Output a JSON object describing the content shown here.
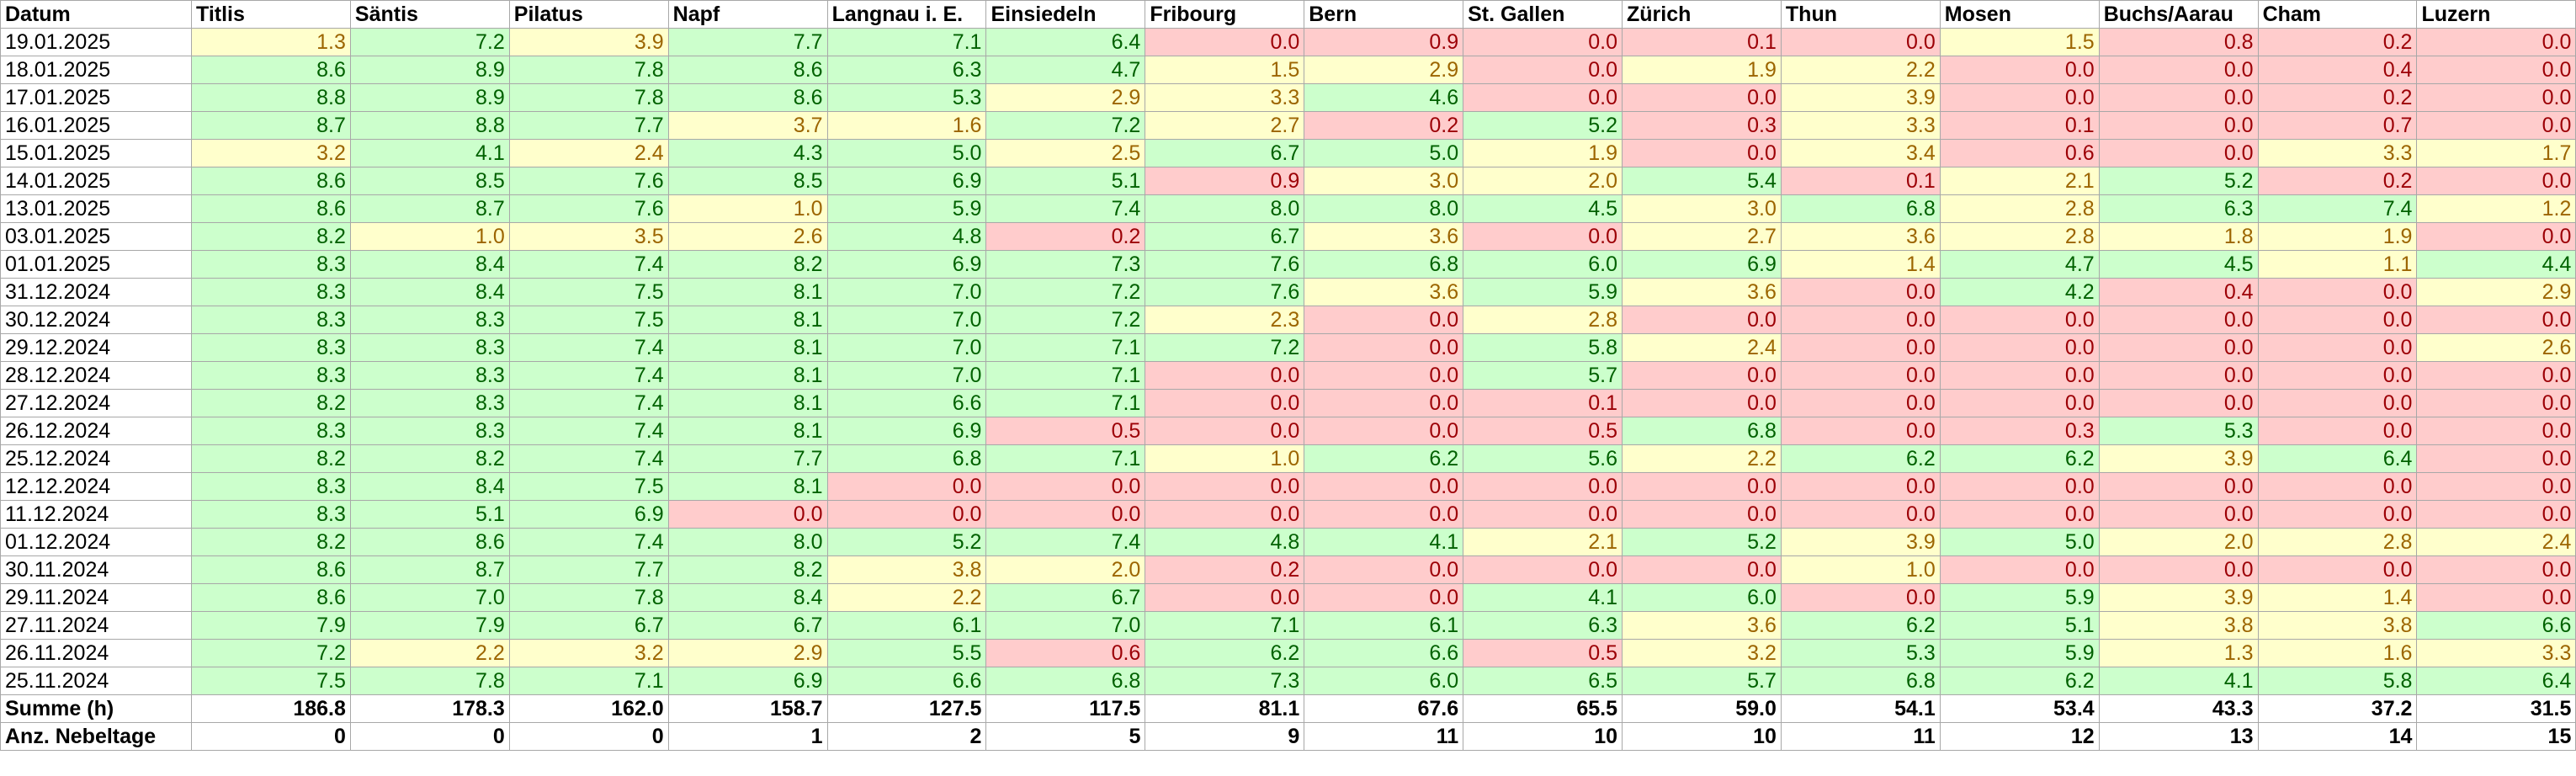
{
  "header": {
    "date_label": "Datum",
    "locations": [
      "Titlis",
      "Säntis",
      "Pilatus",
      "Napf",
      "Langnau i. E.",
      "Einsiedeln",
      "Fribourg",
      "Bern",
      "St. Gallen",
      "Zürich",
      "Thun",
      "Mosen",
      "Buchs/Aarau",
      "Cham",
      "Luzern"
    ]
  },
  "rows": [
    {
      "date": "19.01.2025",
      "values": [
        "1.3",
        "7.2",
        "3.9",
        "7.7",
        "7.1",
        "6.4",
        "0.0",
        "0.9",
        "0.0",
        "0.1",
        "0.0",
        "1.5",
        "0.8",
        "0.2",
        "0.0"
      ],
      "status": [
        "y",
        "g",
        "y",
        "g",
        "g",
        "g",
        "r",
        "r",
        "r",
        "r",
        "r",
        "y",
        "r",
        "r",
        "r"
      ]
    },
    {
      "date": "18.01.2025",
      "values": [
        "8.6",
        "8.9",
        "7.8",
        "8.6",
        "6.3",
        "4.7",
        "1.5",
        "2.9",
        "0.0",
        "1.9",
        "2.2",
        "0.0",
        "0.0",
        "0.4",
        "0.0"
      ],
      "status": [
        "g",
        "g",
        "g",
        "g",
        "g",
        "g",
        "y",
        "y",
        "r",
        "y",
        "y",
        "r",
        "r",
        "r",
        "r"
      ]
    },
    {
      "date": "17.01.2025",
      "values": [
        "8.8",
        "8.9",
        "7.8",
        "8.6",
        "5.3",
        "2.9",
        "3.3",
        "4.6",
        "0.0",
        "0.0",
        "3.9",
        "0.0",
        "0.0",
        "0.2",
        "0.0"
      ],
      "status": [
        "g",
        "g",
        "g",
        "g",
        "g",
        "y",
        "y",
        "g",
        "r",
        "r",
        "y",
        "r",
        "r",
        "r",
        "r"
      ]
    },
    {
      "date": "16.01.2025",
      "values": [
        "8.7",
        "8.8",
        "7.7",
        "3.7",
        "1.6",
        "7.2",
        "2.7",
        "0.2",
        "5.2",
        "0.3",
        "3.3",
        "0.1",
        "0.0",
        "0.7",
        "0.0"
      ],
      "status": [
        "g",
        "g",
        "g",
        "y",
        "y",
        "g",
        "y",
        "r",
        "g",
        "r",
        "y",
        "r",
        "r",
        "r",
        "r"
      ]
    },
    {
      "date": "15.01.2025",
      "values": [
        "3.2",
        "4.1",
        "2.4",
        "4.3",
        "5.0",
        "2.5",
        "6.7",
        "5.0",
        "1.9",
        "0.0",
        "3.4",
        "0.6",
        "0.0",
        "3.3",
        "1.7"
      ],
      "status": [
        "y",
        "g",
        "y",
        "g",
        "g",
        "y",
        "g",
        "g",
        "y",
        "r",
        "y",
        "r",
        "r",
        "y",
        "y"
      ]
    },
    {
      "date": "14.01.2025",
      "values": [
        "8.6",
        "8.5",
        "7.6",
        "8.5",
        "6.9",
        "5.1",
        "0.9",
        "3.0",
        "2.0",
        "5.4",
        "0.1",
        "2.1",
        "5.2",
        "0.2",
        "0.0"
      ],
      "status": [
        "g",
        "g",
        "g",
        "g",
        "g",
        "g",
        "r",
        "y",
        "y",
        "g",
        "r",
        "y",
        "g",
        "r",
        "r"
      ]
    },
    {
      "date": "13.01.2025",
      "values": [
        "8.6",
        "8.7",
        "7.6",
        "1.0",
        "5.9",
        "7.4",
        "8.0",
        "8.0",
        "4.5",
        "3.0",
        "6.8",
        "2.8",
        "6.3",
        "7.4",
        "1.2"
      ],
      "status": [
        "g",
        "g",
        "g",
        "y",
        "g",
        "g",
        "g",
        "g",
        "g",
        "y",
        "g",
        "y",
        "g",
        "g",
        "y"
      ]
    },
    {
      "date": "03.01.2025",
      "values": [
        "8.2",
        "1.0",
        "3.5",
        "2.6",
        "4.8",
        "0.2",
        "6.7",
        "3.6",
        "0.0",
        "2.7",
        "3.6",
        "2.8",
        "1.8",
        "1.9",
        "0.0"
      ],
      "status": [
        "g",
        "y",
        "y",
        "y",
        "g",
        "r",
        "g",
        "y",
        "r",
        "y",
        "y",
        "y",
        "y",
        "y",
        "r"
      ]
    },
    {
      "date": "01.01.2025",
      "values": [
        "8.3",
        "8.4",
        "7.4",
        "8.2",
        "6.9",
        "7.3",
        "7.6",
        "6.8",
        "6.0",
        "6.9",
        "1.4",
        "4.7",
        "4.5",
        "1.1",
        "4.4"
      ],
      "status": [
        "g",
        "g",
        "g",
        "g",
        "g",
        "g",
        "g",
        "g",
        "g",
        "g",
        "y",
        "g",
        "g",
        "y",
        "g"
      ]
    },
    {
      "date": "31.12.2024",
      "values": [
        "8.3",
        "8.4",
        "7.5",
        "8.1",
        "7.0",
        "7.2",
        "7.6",
        "3.6",
        "5.9",
        "3.6",
        "0.0",
        "4.2",
        "0.4",
        "0.0",
        "2.9"
      ],
      "status": [
        "g",
        "g",
        "g",
        "g",
        "g",
        "g",
        "g",
        "y",
        "g",
        "y",
        "r",
        "g",
        "r",
        "r",
        "y"
      ]
    },
    {
      "date": "30.12.2024",
      "values": [
        "8.3",
        "8.3",
        "7.5",
        "8.1",
        "7.0",
        "7.2",
        "2.3",
        "0.0",
        "2.8",
        "0.0",
        "0.0",
        "0.0",
        "0.0",
        "0.0",
        "0.0"
      ],
      "status": [
        "g",
        "g",
        "g",
        "g",
        "g",
        "g",
        "y",
        "r",
        "y",
        "r",
        "r",
        "r",
        "r",
        "r",
        "r"
      ]
    },
    {
      "date": "29.12.2024",
      "values": [
        "8.3",
        "8.3",
        "7.4",
        "8.1",
        "7.0",
        "7.1",
        "7.2",
        "0.0",
        "5.8",
        "2.4",
        "0.0",
        "0.0",
        "0.0",
        "0.0",
        "2.6"
      ],
      "status": [
        "g",
        "g",
        "g",
        "g",
        "g",
        "g",
        "g",
        "r",
        "g",
        "y",
        "r",
        "r",
        "r",
        "r",
        "y"
      ]
    },
    {
      "date": "28.12.2024",
      "values": [
        "8.3",
        "8.3",
        "7.4",
        "8.1",
        "7.0",
        "7.1",
        "0.0",
        "0.0",
        "5.7",
        "0.0",
        "0.0",
        "0.0",
        "0.0",
        "0.0",
        "0.0"
      ],
      "status": [
        "g",
        "g",
        "g",
        "g",
        "g",
        "g",
        "r",
        "r",
        "g",
        "r",
        "r",
        "r",
        "r",
        "r",
        "r"
      ]
    },
    {
      "date": "27.12.2024",
      "values": [
        "8.2",
        "8.3",
        "7.4",
        "8.1",
        "6.6",
        "7.1",
        "0.0",
        "0.0",
        "0.1",
        "0.0",
        "0.0",
        "0.0",
        "0.0",
        "0.0",
        "0.0"
      ],
      "status": [
        "g",
        "g",
        "g",
        "g",
        "g",
        "g",
        "r",
        "r",
        "r",
        "r",
        "r",
        "r",
        "r",
        "r",
        "r"
      ]
    },
    {
      "date": "26.12.2024",
      "values": [
        "8.3",
        "8.3",
        "7.4",
        "8.1",
        "6.9",
        "0.5",
        "0.0",
        "0.0",
        "0.5",
        "6.8",
        "0.0",
        "0.3",
        "5.3",
        "0.0",
        "0.0"
      ],
      "status": [
        "g",
        "g",
        "g",
        "g",
        "g",
        "r",
        "r",
        "r",
        "r",
        "g",
        "r",
        "r",
        "g",
        "r",
        "r"
      ]
    },
    {
      "date": "25.12.2024",
      "values": [
        "8.2",
        "8.2",
        "7.4",
        "7.7",
        "6.8",
        "7.1",
        "1.0",
        "6.2",
        "5.6",
        "2.2",
        "6.2",
        "6.2",
        "3.9",
        "6.4",
        "0.0"
      ],
      "status": [
        "g",
        "g",
        "g",
        "g",
        "g",
        "g",
        "y",
        "g",
        "g",
        "y",
        "g",
        "g",
        "y",
        "g",
        "r"
      ]
    },
    {
      "date": "12.12.2024",
      "values": [
        "8.3",
        "8.4",
        "7.5",
        "8.1",
        "0.0",
        "0.0",
        "0.0",
        "0.0",
        "0.0",
        "0.0",
        "0.0",
        "0.0",
        "0.0",
        "0.0",
        "0.0"
      ],
      "status": [
        "g",
        "g",
        "g",
        "g",
        "r",
        "r",
        "r",
        "r",
        "r",
        "r",
        "r",
        "r",
        "r",
        "r",
        "r"
      ]
    },
    {
      "date": "11.12.2024",
      "values": [
        "8.3",
        "5.1",
        "6.9",
        "0.0",
        "0.0",
        "0.0",
        "0.0",
        "0.0",
        "0.0",
        "0.0",
        "0.0",
        "0.0",
        "0.0",
        "0.0",
        "0.0"
      ],
      "status": [
        "g",
        "g",
        "g",
        "r",
        "r",
        "r",
        "r",
        "r",
        "r",
        "r",
        "r",
        "r",
        "r",
        "r",
        "r"
      ]
    },
    {
      "date": "01.12.2024",
      "values": [
        "8.2",
        "8.6",
        "7.4",
        "8.0",
        "5.2",
        "7.4",
        "4.8",
        "4.1",
        "2.1",
        "5.2",
        "3.9",
        "5.0",
        "2.0",
        "2.8",
        "2.4"
      ],
      "status": [
        "g",
        "g",
        "g",
        "g",
        "g",
        "g",
        "g",
        "g",
        "y",
        "g",
        "y",
        "g",
        "y",
        "y",
        "y"
      ]
    },
    {
      "date": "30.11.2024",
      "values": [
        "8.6",
        "8.7",
        "7.7",
        "8.2",
        "3.8",
        "2.0",
        "0.2",
        "0.0",
        "0.0",
        "0.0",
        "1.0",
        "0.0",
        "0.0",
        "0.0",
        "0.0"
      ],
      "status": [
        "g",
        "g",
        "g",
        "g",
        "y",
        "y",
        "r",
        "r",
        "r",
        "r",
        "y",
        "r",
        "r",
        "r",
        "r"
      ]
    },
    {
      "date": "29.11.2024",
      "values": [
        "8.6",
        "7.0",
        "7.8",
        "8.4",
        "2.2",
        "6.7",
        "0.0",
        "0.0",
        "4.1",
        "6.0",
        "0.0",
        "5.9",
        "3.9",
        "1.4",
        "0.0"
      ],
      "status": [
        "g",
        "g",
        "g",
        "g",
        "y",
        "g",
        "r",
        "r",
        "g",
        "g",
        "r",
        "g",
        "y",
        "y",
        "r"
      ]
    },
    {
      "date": "27.11.2024",
      "values": [
        "7.9",
        "7.9",
        "6.7",
        "6.7",
        "6.1",
        "7.0",
        "7.1",
        "6.1",
        "6.3",
        "3.6",
        "6.2",
        "5.1",
        "3.8",
        "3.8",
        "6.6"
      ],
      "status": [
        "g",
        "g",
        "g",
        "g",
        "g",
        "g",
        "g",
        "g",
        "g",
        "y",
        "g",
        "g",
        "y",
        "y",
        "g"
      ]
    },
    {
      "date": "26.11.2024",
      "values": [
        "7.2",
        "2.2",
        "3.2",
        "2.9",
        "5.5",
        "0.6",
        "6.2",
        "6.6",
        "0.5",
        "3.2",
        "5.3",
        "5.9",
        "1.3",
        "1.6",
        "3.3"
      ],
      "status": [
        "g",
        "y",
        "y",
        "y",
        "g",
        "r",
        "g",
        "g",
        "r",
        "y",
        "g",
        "g",
        "y",
        "y",
        "y"
      ]
    },
    {
      "date": "25.11.2024",
      "values": [
        "7.5",
        "7.8",
        "7.1",
        "6.9",
        "6.6",
        "6.8",
        "7.3",
        "6.0",
        "6.5",
        "5.7",
        "6.8",
        "6.2",
        "4.1",
        "5.8",
        "6.4"
      ],
      "status": [
        "g",
        "g",
        "g",
        "g",
        "g",
        "g",
        "g",
        "g",
        "g",
        "g",
        "g",
        "g",
        "g",
        "g",
        "g"
      ]
    }
  ],
  "summary": [
    {
      "label": "Summe (h)",
      "values": [
        "186.8",
        "178.3",
        "162.0",
        "158.7",
        "127.5",
        "117.5",
        "81.1",
        "67.6",
        "65.5",
        "59.0",
        "54.1",
        "53.4",
        "43.3",
        "37.2",
        "31.5"
      ]
    },
    {
      "label": "Anz. Nebeltage",
      "values": [
        "0",
        "0",
        "0",
        "1",
        "2",
        "5",
        "9",
        "11",
        "10",
        "10",
        "11",
        "12",
        "13",
        "14",
        "15"
      ]
    }
  ],
  "colors": {
    "good_bg": "#ccffcc",
    "good_text": "#006100",
    "mid_bg": "#ffffcc",
    "mid_text": "#9c6500",
    "bad_bg": "#ffcccc",
    "bad_text": "#9c0006",
    "grid": "#a8a8a8"
  }
}
